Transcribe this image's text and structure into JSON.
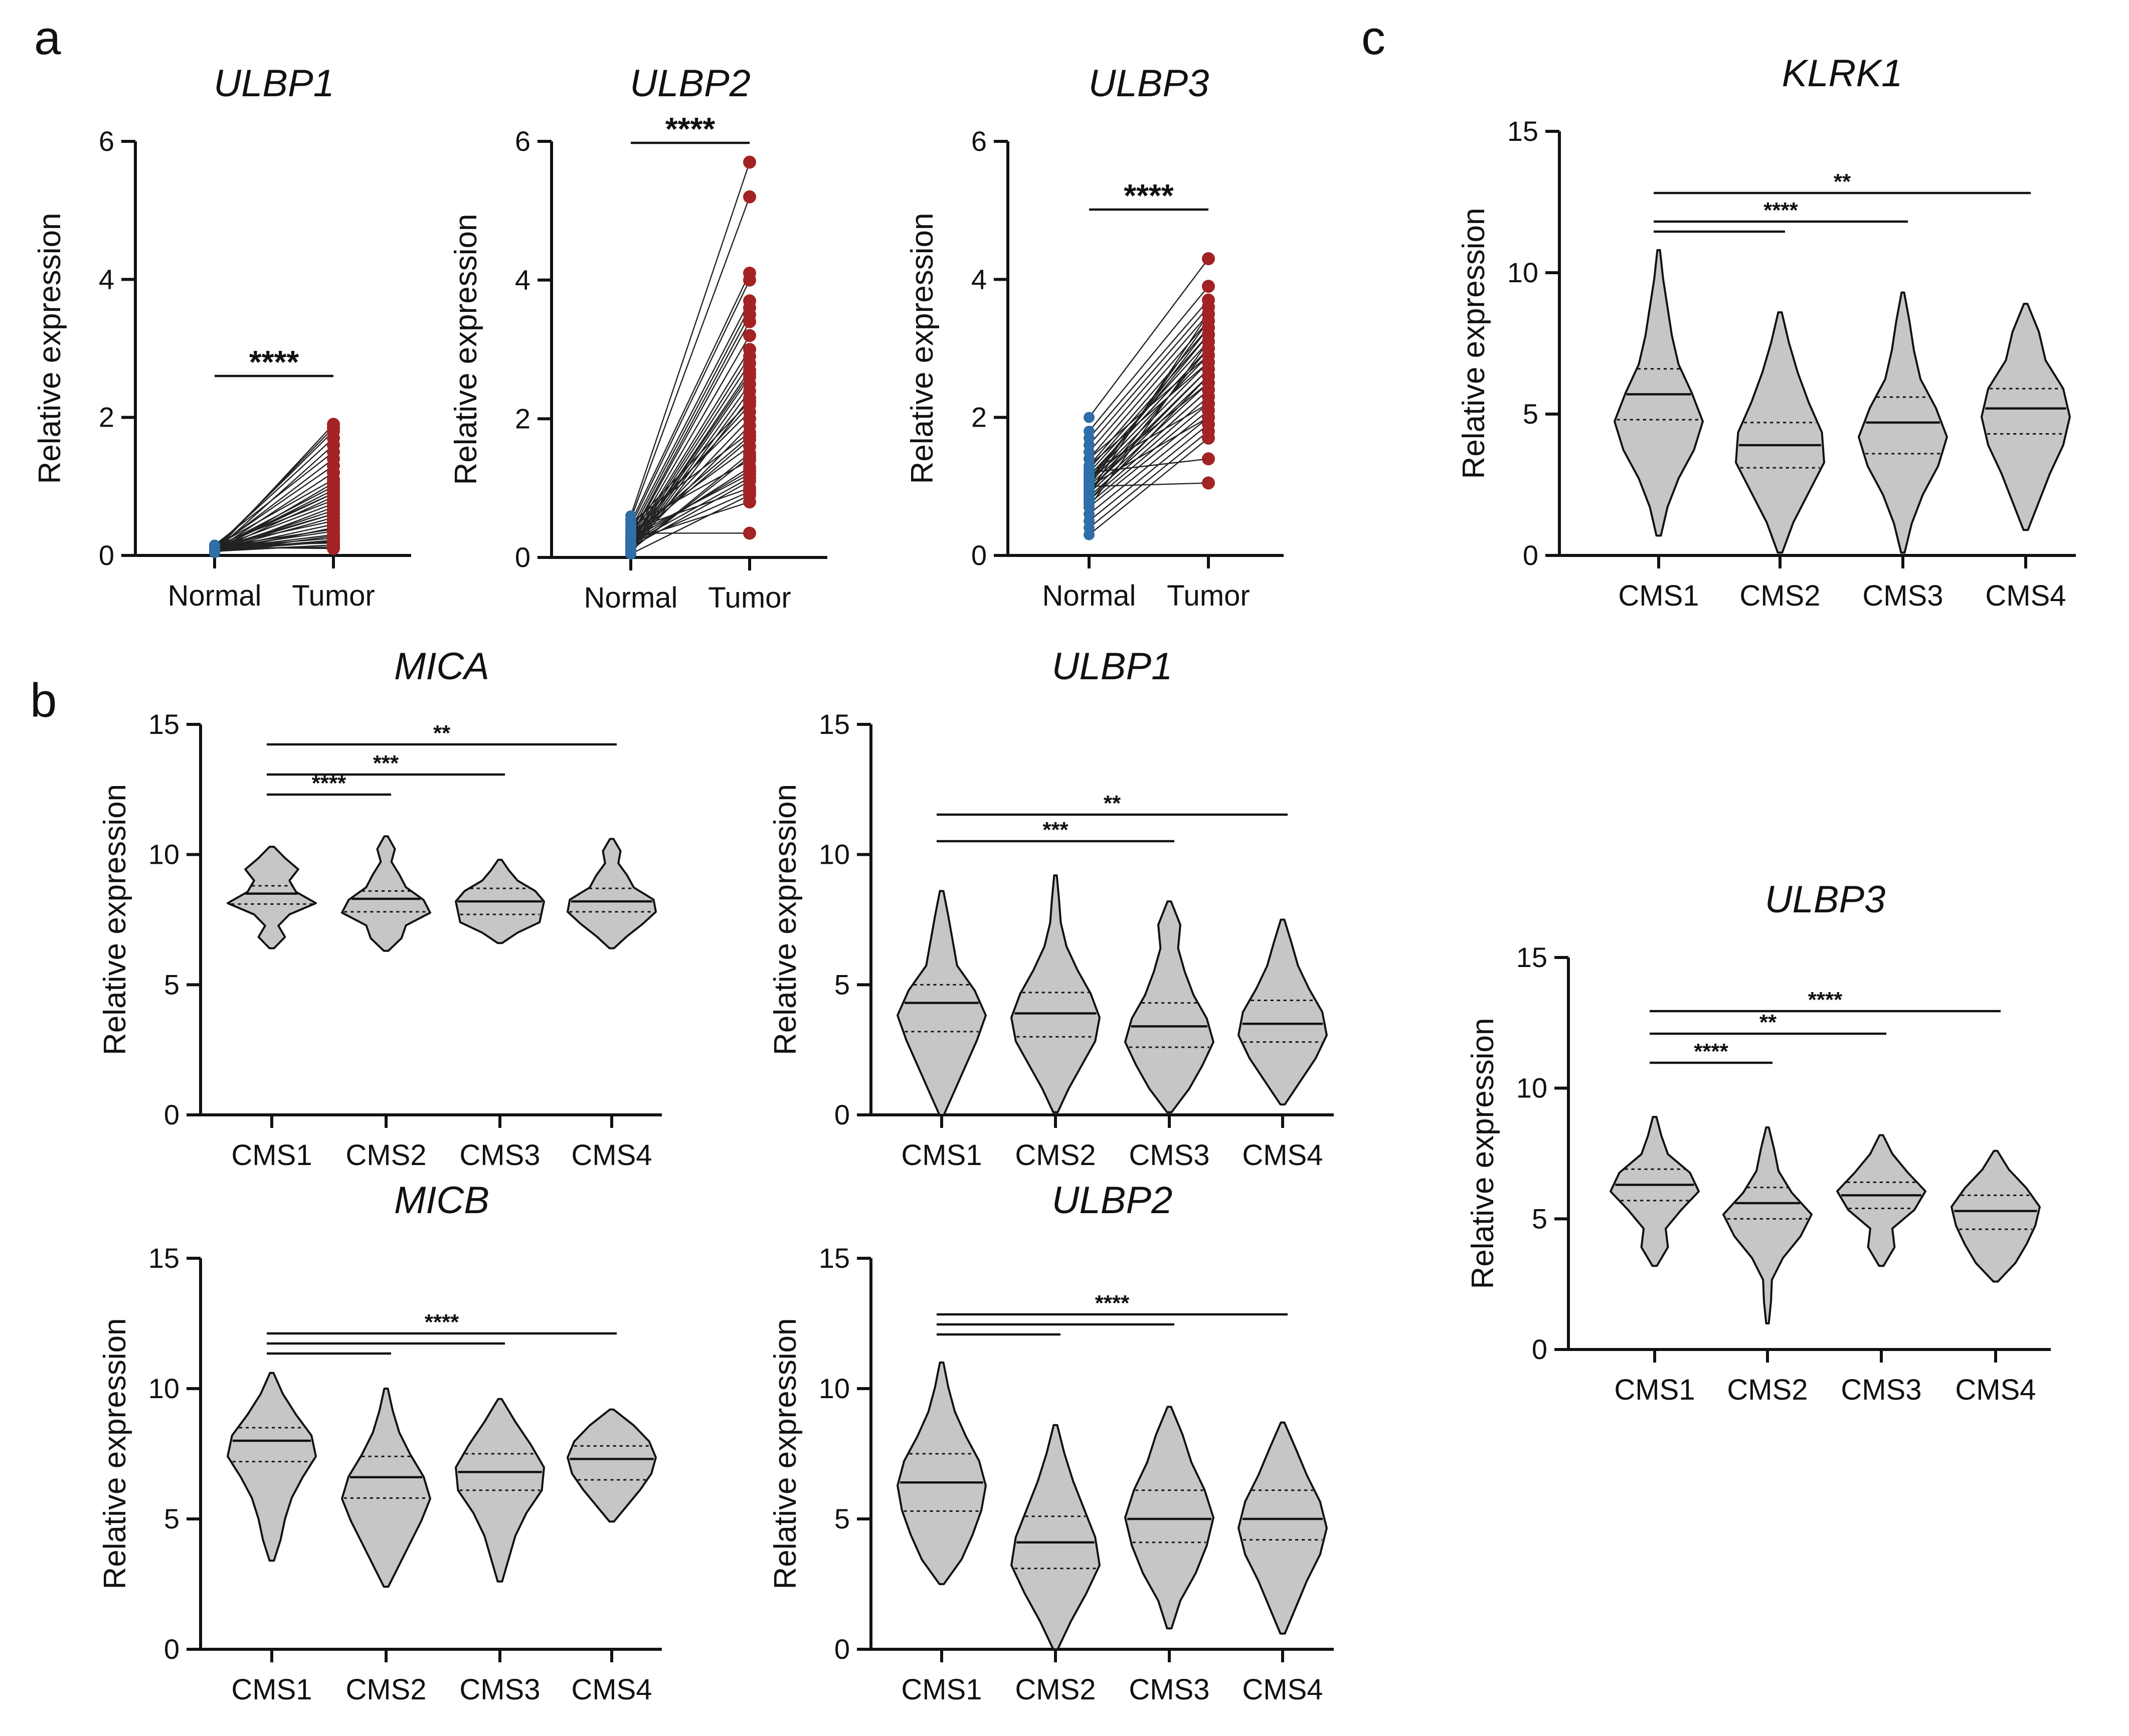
{
  "panel_letters": [
    "a",
    "b",
    "c"
  ],
  "colors": {
    "normal": "#2f6ea6",
    "tumor": "#a32324",
    "violin": "#c6c6c6"
  },
  "chart_data": [
    {
      "id": "a_ulbp1",
      "type": "scatter",
      "subtype": "paired",
      "title": "ULBP1",
      "xlabel": "",
      "ylabel": "Relative expression",
      "categories": [
        "Normal",
        "Tumor"
      ],
      "ylim": [
        0,
        6
      ],
      "yticks": [
        0,
        2,
        4,
        6
      ],
      "normal": [
        0.05,
        0.08,
        0.1,
        0.12,
        0.06,
        0.15,
        0.09,
        0.11,
        0.07,
        0.13,
        0.04,
        0.1,
        0.08,
        0.12,
        0.06,
        0.14,
        0.1,
        0.05,
        0.09,
        0.11,
        0.07,
        0.13,
        0.08,
        0.06,
        0.12,
        0.1,
        0.09,
        0.05,
        0.11,
        0.08,
        0.07,
        0.14,
        0.06,
        0.1,
        0.12,
        0.09,
        0.08,
        0.05,
        0.11,
        0.07
      ],
      "tumor": [
        1.9,
        1.85,
        1.8,
        1.7,
        1.6,
        1.5,
        1.4,
        1.3,
        1.2,
        1.1,
        1.05,
        1.0,
        0.95,
        0.9,
        0.85,
        0.8,
        0.75,
        0.7,
        0.65,
        0.6,
        0.55,
        0.5,
        0.45,
        0.4,
        0.38,
        0.35,
        0.3,
        0.28,
        0.25,
        0.22,
        0.2,
        0.18,
        0.15,
        0.12,
        0.1,
        0.9,
        0.6,
        0.4,
        0.2,
        0.15
      ],
      "significance": [
        {
          "from": "Normal",
          "to": "Tumor",
          "label": "****"
        }
      ]
    },
    {
      "id": "a_ulbp2",
      "type": "scatter",
      "subtype": "paired",
      "title": "ULBP2",
      "xlabel": "",
      "ylabel": "Relative expression",
      "categories": [
        "Normal",
        "Tumor"
      ],
      "ylim": [
        0,
        6
      ],
      "yticks": [
        0,
        2,
        4,
        6
      ],
      "normal": [
        0.6,
        0.55,
        0.5,
        0.45,
        0.4,
        0.35,
        0.3,
        0.28,
        0.25,
        0.22,
        0.2,
        0.18,
        0.15,
        0.12,
        0.1,
        0.08,
        0.05,
        0.3,
        0.4,
        0.2,
        0.15,
        0.5,
        0.25,
        0.35,
        0.1,
        0.45,
        0.2,
        0.3,
        0.15,
        0.4,
        0.05,
        0.25,
        0.35,
        0.2,
        0.1,
        0.3,
        0.45,
        0.15,
        0.25,
        0.2
      ],
      "tumor": [
        5.7,
        5.2,
        4.1,
        4.0,
        3.7,
        3.6,
        3.5,
        3.4,
        3.2,
        3.0,
        2.9,
        2.8,
        2.7,
        2.6,
        2.5,
        2.4,
        2.3,
        2.2,
        2.1,
        2.0,
        1.9,
        1.8,
        1.7,
        1.6,
        1.5,
        1.4,
        1.3,
        1.2,
        1.1,
        1.0,
        0.9,
        0.8,
        0.35,
        1.15,
        1.45,
        1.75,
        2.25,
        2.65,
        1.25,
        0.95
      ],
      "significance": [
        {
          "from": "Normal",
          "to": "Tumor",
          "label": "****"
        }
      ]
    },
    {
      "id": "a_ulbp3",
      "type": "scatter",
      "subtype": "paired",
      "title": "ULBP3",
      "xlabel": "",
      "ylabel": "Relative expression",
      "categories": [
        "Normal",
        "Tumor"
      ],
      "ylim": [
        0,
        6
      ],
      "yticks": [
        0,
        2,
        4,
        6
      ],
      "normal": [
        2.0,
        1.8,
        1.7,
        1.6,
        1.5,
        1.4,
        1.3,
        1.25,
        1.2,
        1.15,
        1.1,
        1.05,
        1.0,
        0.95,
        0.9,
        0.85,
        0.8,
        0.75,
        0.7,
        0.6,
        0.5,
        0.4,
        0.3,
        1.2,
        1.0,
        0.9,
        1.1,
        1.3,
        0.8,
        1.0,
        1.4,
        0.7,
        1.1,
        0.95,
        1.05,
        1.2,
        0.85,
        1.15,
        1.0,
        0.9
      ],
      "tumor": [
        4.3,
        3.9,
        3.7,
        3.6,
        3.5,
        3.4,
        3.3,
        3.2,
        3.1,
        3.0,
        2.9,
        2.8,
        2.7,
        2.6,
        2.5,
        2.4,
        2.3,
        2.2,
        2.1,
        2.0,
        1.9,
        1.8,
        1.7,
        1.4,
        1.05,
        3.0,
        3.2,
        2.8,
        2.6,
        3.4,
        2.9,
        3.1,
        2.5,
        2.7,
        3.3,
        2.2,
        2.4,
        3.0,
        2.0,
        3.5
      ],
      "significance": [
        {
          "from": "Normal",
          "to": "Tumor",
          "label": "****"
        }
      ]
    },
    {
      "id": "b_mica",
      "type": "violin",
      "title": "MICA",
      "xlabel": "",
      "ylabel": "Relative expression",
      "categories": [
        "CMS1",
        "CMS2",
        "CMS3",
        "CMS4"
      ],
      "ylim": [
        0,
        15
      ],
      "yticks": [
        0,
        5,
        10,
        15
      ],
      "series": [
        {
          "name": "CMS1",
          "min": 6.4,
          "q1": 8.1,
          "median": 8.5,
          "q3": 8.8,
          "max": 10.3,
          "profile": [
            0.05,
            0.3,
            0.15,
            0.4,
            1,
            0.55,
            0.4,
            0.6,
            0.3,
            0.05
          ]
        },
        {
          "name": "CMS2",
          "min": 6.3,
          "q1": 7.8,
          "median": 8.3,
          "q3": 8.6,
          "max": 10.7,
          "profile": [
            0.05,
            0.35,
            0.45,
            1,
            0.85,
            0.45,
            0.3,
            0.12,
            0.2,
            0.04
          ]
        },
        {
          "name": "CMS3",
          "min": 6.6,
          "q1": 7.7,
          "median": 8.2,
          "q3": 8.7,
          "max": 9.8,
          "profile": [
            0.05,
            0.4,
            0.9,
            0.95,
            1,
            0.8,
            0.4,
            0.2,
            0.04
          ]
        },
        {
          "name": "CMS4",
          "min": 6.4,
          "q1": 7.8,
          "median": 8.2,
          "q3": 8.7,
          "max": 10.6,
          "profile": [
            0.05,
            0.35,
            0.7,
            1,
            0.95,
            0.5,
            0.35,
            0.15,
            0.2,
            0.04
          ]
        }
      ],
      "significance": [
        {
          "from": "CMS1",
          "to": "CMS2",
          "label": "****"
        },
        {
          "from": "CMS1",
          "to": "CMS3",
          "label": "***"
        },
        {
          "from": "CMS1",
          "to": "CMS4",
          "label": "**"
        }
      ]
    },
    {
      "id": "b_ulbp1",
      "type": "violin",
      "title": "ULBP1",
      "xlabel": "",
      "ylabel": "Relative expression",
      "categories": [
        "CMS1",
        "CMS2",
        "CMS3",
        "CMS4"
      ],
      "ylim": [
        0,
        15
      ],
      "yticks": [
        0,
        5,
        10,
        15
      ],
      "series": [
        {
          "name": "CMS1",
          "min": 0.0,
          "q1": 3.2,
          "median": 4.3,
          "q3": 5.0,
          "max": 8.6,
          "profile": [
            0.05,
            0.3,
            0.55,
            0.8,
            1,
            0.75,
            0.35,
            0.25,
            0.15,
            0.04
          ]
        },
        {
          "name": "CMS2",
          "min": 0.1,
          "q1": 3.0,
          "median": 3.9,
          "q3": 4.7,
          "max": 9.2,
          "profile": [
            0.05,
            0.3,
            0.6,
            0.9,
            1,
            0.8,
            0.5,
            0.25,
            0.12,
            0.08,
            0.03
          ]
        },
        {
          "name": "CMS3",
          "min": 0.1,
          "q1": 2.6,
          "median": 3.4,
          "q3": 4.3,
          "max": 8.2,
          "profile": [
            0.05,
            0.45,
            0.75,
            1,
            0.85,
            0.55,
            0.35,
            0.2,
            0.25,
            0.04
          ]
        },
        {
          "name": "CMS4",
          "min": 0.4,
          "q1": 2.8,
          "median": 3.5,
          "q3": 4.4,
          "max": 7.5,
          "profile": [
            0.05,
            0.4,
            0.75,
            1,
            0.9,
            0.6,
            0.35,
            0.2,
            0.04
          ]
        }
      ],
      "significance": [
        {
          "from": "CMS1",
          "to": "CMS3",
          "label": "***"
        },
        {
          "from": "CMS1",
          "to": "CMS4",
          "label": "**"
        }
      ]
    },
    {
      "id": "b_micb",
      "type": "violin",
      "title": "MICB",
      "xlabel": "",
      "ylabel": "Relative expression",
      "categories": [
        "CMS1",
        "CMS2",
        "CMS3",
        "CMS4"
      ],
      "ylim": [
        0,
        15
      ],
      "yticks": [
        0,
        5,
        10,
        15
      ],
      "series": [
        {
          "name": "CMS1",
          "min": 3.4,
          "q1": 7.2,
          "median": 8.0,
          "q3": 8.5,
          "max": 10.6,
          "profile": [
            0.05,
            0.2,
            0.3,
            0.45,
            0.7,
            1,
            0.9,
            0.55,
            0.25,
            0.04
          ]
        },
        {
          "name": "CMS2",
          "min": 2.4,
          "q1": 5.8,
          "median": 6.6,
          "q3": 7.4,
          "max": 10.0,
          "profile": [
            0.05,
            0.3,
            0.55,
            0.8,
            1,
            0.85,
            0.55,
            0.3,
            0.15,
            0.04
          ]
        },
        {
          "name": "CMS3",
          "min": 2.6,
          "q1": 6.1,
          "median": 6.8,
          "q3": 7.5,
          "max": 9.6,
          "profile": [
            0.05,
            0.2,
            0.35,
            0.6,
            0.95,
            1,
            0.7,
            0.35,
            0.04
          ]
        },
        {
          "name": "CMS4",
          "min": 4.9,
          "q1": 6.5,
          "median": 7.3,
          "q3": 7.8,
          "max": 9.2,
          "profile": [
            0.05,
            0.35,
            0.65,
            0.9,
            1,
            0.85,
            0.5,
            0.04
          ]
        }
      ],
      "significance": [
        {
          "from": "CMS1",
          "to": "CMS2",
          "label": ""
        },
        {
          "from": "CMS1",
          "to": "CMS3",
          "label": ""
        },
        {
          "from": "CMS1",
          "to": "CMS4",
          "label": "****"
        }
      ]
    },
    {
      "id": "b_ulbp2",
      "type": "violin",
      "title": "ULBP2",
      "xlabel": "",
      "ylabel": "Relative expression",
      "categories": [
        "CMS1",
        "CMS2",
        "CMS3",
        "CMS4"
      ],
      "ylim": [
        0,
        15
      ],
      "yticks": [
        0,
        5,
        10,
        15
      ],
      "series": [
        {
          "name": "CMS1",
          "min": 2.5,
          "q1": 5.3,
          "median": 6.4,
          "q3": 7.5,
          "max": 11.0,
          "profile": [
            0.05,
            0.45,
            0.7,
            0.9,
            1,
            0.85,
            0.55,
            0.3,
            0.15,
            0.04
          ]
        },
        {
          "name": "CMS2",
          "min": 0.0,
          "q1": 3.1,
          "median": 4.1,
          "q3": 5.1,
          "max": 8.6,
          "profile": [
            0.05,
            0.35,
            0.7,
            1,
            0.9,
            0.65,
            0.4,
            0.2,
            0.04
          ]
        },
        {
          "name": "CMS3",
          "min": 0.8,
          "q1": 4.1,
          "median": 5.0,
          "q3": 6.1,
          "max": 9.3,
          "profile": [
            0.05,
            0.25,
            0.6,
            0.85,
            1,
            0.8,
            0.5,
            0.3,
            0.04
          ]
        },
        {
          "name": "CMS4",
          "min": 0.6,
          "q1": 4.2,
          "median": 5.0,
          "q3": 6.1,
          "max": 8.7,
          "profile": [
            0.05,
            0.3,
            0.55,
            0.85,
            1,
            0.85,
            0.55,
            0.3,
            0.04
          ]
        }
      ],
      "significance": [
        {
          "from": "CMS1",
          "to": "CMS2",
          "label": ""
        },
        {
          "from": "CMS1",
          "to": "CMS3",
          "label": ""
        },
        {
          "from": "CMS1",
          "to": "CMS4",
          "label": "****"
        }
      ]
    },
    {
      "id": "c_klrk1",
      "type": "violin",
      "title": "KLRK1",
      "xlabel": "",
      "ylabel": "Relative expression",
      "categories": [
        "CMS1",
        "CMS2",
        "CMS3",
        "CMS4"
      ],
      "ylim": [
        0,
        15
      ],
      "yticks": [
        0,
        5,
        10,
        15
      ],
      "series": [
        {
          "name": "CMS1",
          "min": 0.7,
          "q1": 4.8,
          "median": 5.7,
          "q3": 6.6,
          "max": 10.8,
          "profile": [
            0.05,
            0.2,
            0.45,
            0.8,
            1,
            0.75,
            0.45,
            0.3,
            0.2,
            0.1,
            0.03
          ]
        },
        {
          "name": "CMS2",
          "min": 0.1,
          "q1": 3.1,
          "median": 3.9,
          "q3": 4.7,
          "max": 8.6,
          "profile": [
            0.05,
            0.3,
            0.65,
            1,
            0.95,
            0.65,
            0.4,
            0.2,
            0.04
          ]
        },
        {
          "name": "CMS3",
          "min": 0.1,
          "q1": 3.6,
          "median": 4.7,
          "q3": 5.6,
          "max": 9.3,
          "profile": [
            0.04,
            0.2,
            0.45,
            0.8,
            1,
            0.75,
            0.4,
            0.25,
            0.15,
            0.03
          ]
        },
        {
          "name": "CMS4",
          "min": 0.9,
          "q1": 4.3,
          "median": 5.2,
          "q3": 5.9,
          "max": 8.9,
          "profile": [
            0.05,
            0.3,
            0.55,
            0.85,
            1,
            0.85,
            0.45,
            0.3,
            0.04
          ]
        }
      ],
      "significance": [
        {
          "from": "CMS1",
          "to": "CMS2",
          "label": ""
        },
        {
          "from": "CMS1",
          "to": "CMS3",
          "label": "****"
        },
        {
          "from": "CMS1",
          "to": "CMS4",
          "label": "**"
        }
      ]
    },
    {
      "id": "c_ulbp3",
      "type": "violin",
      "title": "ULBP3",
      "xlabel": "",
      "ylabel": "Relative expression",
      "categories": [
        "CMS1",
        "CMS2",
        "CMS3",
        "CMS4"
      ],
      "ylim": [
        0,
        15
      ],
      "yticks": [
        0,
        5,
        10,
        15
      ],
      "series": [
        {
          "name": "CMS1",
          "min": 3.2,
          "q1": 5.7,
          "median": 6.3,
          "q3": 6.9,
          "max": 8.9,
          "profile": [
            0.05,
            0.3,
            0.25,
            0.6,
            1,
            0.8,
            0.3,
            0.15,
            0.04
          ]
        },
        {
          "name": "CMS2",
          "min": 1.0,
          "q1": 5.0,
          "median": 5.6,
          "q3": 6.2,
          "max": 8.5,
          "profile": [
            0.03,
            0.08,
            0.1,
            0.35,
            0.75,
            1,
            0.55,
            0.25,
            0.15,
            0.03
          ]
        },
        {
          "name": "CMS3",
          "min": 3.2,
          "q1": 5.4,
          "median": 5.9,
          "q3": 6.4,
          "max": 8.2,
          "profile": [
            0.05,
            0.3,
            0.25,
            0.75,
            1,
            0.6,
            0.25,
            0.04
          ]
        },
        {
          "name": "CMS4",
          "min": 2.6,
          "q1": 4.6,
          "median": 5.3,
          "q3": 5.9,
          "max": 7.6,
          "profile": [
            0.05,
            0.45,
            0.7,
            0.9,
            1,
            0.7,
            0.3,
            0.04
          ]
        }
      ],
      "significance": [
        {
          "from": "CMS1",
          "to": "CMS2",
          "label": "****"
        },
        {
          "from": "CMS1",
          "to": "CMS3",
          "label": "**"
        },
        {
          "from": "CMS1",
          "to": "CMS4",
          "label": "****"
        }
      ]
    }
  ]
}
